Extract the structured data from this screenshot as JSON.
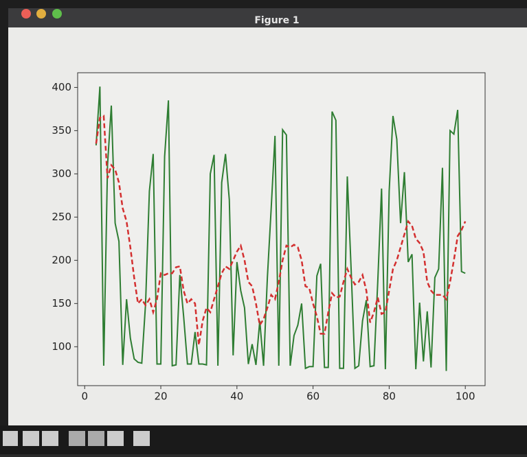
{
  "window": {
    "title": "Figure 1"
  },
  "chart_data": {
    "type": "line",
    "x": [
      3,
      4,
      5,
      6,
      7,
      8,
      9,
      10,
      11,
      12,
      13,
      14,
      15,
      16,
      17,
      18,
      19,
      20,
      21,
      22,
      23,
      24,
      25,
      26,
      27,
      28,
      29,
      30,
      31,
      32,
      33,
      34,
      35,
      36,
      37,
      38,
      39,
      40,
      41,
      42,
      43,
      44,
      45,
      46,
      47,
      48,
      49,
      50,
      51,
      52,
      53,
      54,
      55,
      56,
      57,
      58,
      59,
      60,
      61,
      62,
      63,
      64,
      65,
      66,
      67,
      68,
      69,
      70,
      71,
      72,
      73,
      74,
      75,
      76,
      77,
      78,
      79,
      80,
      81,
      82,
      83,
      84,
      85,
      86,
      87,
      88,
      89,
      90,
      91,
      92,
      93,
      94,
      95,
      96,
      97,
      98,
      99,
      100
    ],
    "series": [
      {
        "color": "#2e7d32",
        "style": "solid",
        "values": [
          333,
          401,
          78,
          310,
          379,
          243,
          222,
          79,
          155,
          110,
          86,
          82,
          81,
          150,
          280,
          323,
          80,
          80,
          320,
          385,
          78,
          79,
          183,
          135,
          80,
          80,
          117,
          80,
          80,
          79,
          300,
          322,
          78,
          290,
          323,
          270,
          90,
          198,
          165,
          145,
          80,
          103,
          79,
          130,
          78,
          180,
          260,
          344,
          78,
          351,
          345,
          78,
          113,
          125,
          150,
          75,
          77,
          77,
          182,
          196,
          76,
          76,
          372,
          362,
          75,
          75,
          297,
          190,
          75,
          78,
          130,
          154,
          77,
          78,
          175,
          283,
          74,
          280,
          367,
          340,
          243,
          302,
          198,
          207,
          74,
          151,
          83,
          141,
          76,
          180,
          190,
          307,
          72,
          350,
          346,
          374,
          187,
          185
        ]
      },
      {
        "color": "#d32f2f",
        "style": "dashed",
        "values": [
          335,
          365,
          367,
          295,
          310,
          305,
          290,
          260,
          245,
          215,
          180,
          150,
          155,
          148,
          155,
          140,
          155,
          185,
          183,
          185,
          185,
          192,
          193,
          165,
          150,
          155,
          150,
          102,
          130,
          145,
          140,
          155,
          170,
          185,
          193,
          190,
          200,
          210,
          217,
          200,
          175,
          170,
          150,
          125,
          132,
          145,
          160,
          155,
          175,
          200,
          217,
          215,
          218,
          215,
          200,
          170,
          168,
          150,
          135,
          115,
          115,
          140,
          162,
          157,
          158,
          175,
          190,
          180,
          172,
          175,
          183,
          165,
          128,
          140,
          157,
          138,
          140,
          165,
          190,
          200,
          215,
          230,
          245,
          240,
          225,
          220,
          210,
          175,
          165,
          160,
          160,
          160,
          155,
          175,
          200,
          228,
          235,
          245
        ]
      }
    ],
    "xlim": [
      -1.85,
      105.2
    ],
    "ylim": [
      55,
      417
    ],
    "xticks": [
      0,
      20,
      40,
      60,
      80,
      100
    ],
    "yticks": [
      100,
      150,
      200,
      250,
      300,
      350,
      400
    ]
  }
}
